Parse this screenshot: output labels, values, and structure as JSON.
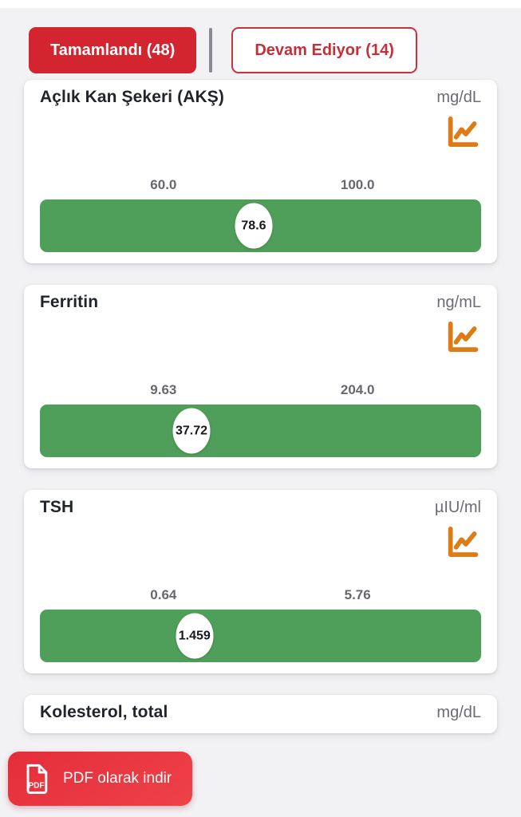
{
  "tabs": {
    "completed": {
      "label": "Tamamlandı (48)"
    },
    "in_progress": {
      "label": "Devam Ediyor (14)"
    }
  },
  "pdf_button": {
    "label": "PDF olarak indir",
    "icon": "pdf-file-icon"
  },
  "colors": {
    "primary_red": "#d32530",
    "pdf_button_red": "#e9333e",
    "bar_green": "#4f9e59",
    "trend_icon_orange": "#dd7b16",
    "page_background": "#f2f2f4",
    "unit_gray": "#6b6b78"
  },
  "cards": [
    {
      "title": "Açlık Kan Şekeri (AKŞ)",
      "unit": "mg/dL",
      "ref_low": "60.0",
      "ref_high": "100.0",
      "value": "78.6",
      "ref_low_num": 60.0,
      "ref_high_num": 100.0,
      "value_num": 78.6,
      "trend_icon": "chart-line-icon",
      "cut": false
    },
    {
      "title": "Ferritin",
      "unit": "ng/mL",
      "ref_low": "9.63",
      "ref_high": "204.0",
      "value": "37.72",
      "ref_low_num": 9.63,
      "ref_high_num": 204.0,
      "value_num": 37.72,
      "trend_icon": "chart-line-icon",
      "cut": false
    },
    {
      "title": "TSH",
      "unit": "µIU/ml",
      "ref_low": "0.64",
      "ref_high": "5.76",
      "value": "1.459",
      "ref_low_num": 0.64,
      "ref_high_num": 5.76,
      "value_num": 1.459,
      "trend_icon": "chart-line-icon",
      "cut": false
    },
    {
      "title": "Kolesterol, total",
      "unit": "mg/dL",
      "cut": true
    }
  ]
}
